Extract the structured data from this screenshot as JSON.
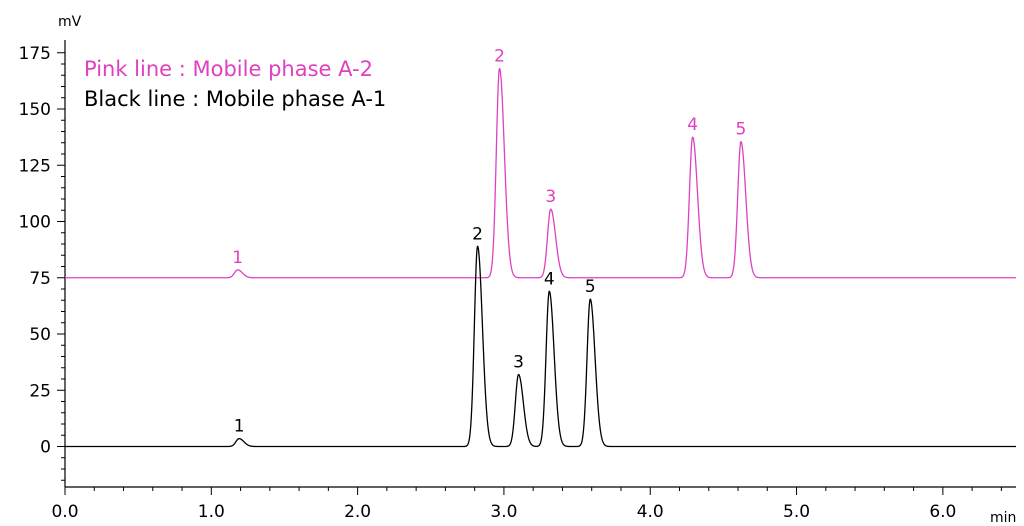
{
  "chart_data": {
    "type": "line",
    "xlabel": "min",
    "ylabel": "mV",
    "xlim": [
      0.0,
      6.5
    ],
    "ylim": [
      -18,
      178
    ],
    "x_ticks": [
      0.0,
      1.0,
      2.0,
      3.0,
      4.0,
      5.0,
      6.0
    ],
    "x_tick_labels": [
      "0.0",
      "1.0",
      "2.0",
      "3.0",
      "4.0",
      "5.0",
      "6.0"
    ],
    "y_ticks": [
      0,
      25,
      50,
      75,
      100,
      125,
      150,
      175
    ],
    "y_tick_labels": [
      "0",
      "25",
      "50",
      "75",
      "100",
      "125",
      "150",
      "175"
    ],
    "grid": false,
    "legend_position": "top-left",
    "legend": [
      "Pink line : Mobile phase A-2",
      "Black line : Mobile phase A-1"
    ],
    "series": [
      {
        "color": "#e040c0",
        "baseline": 75,
        "peaks": [
          {
            "label": "1",
            "rt": 1.18,
            "height": 78.5
          },
          {
            "label": "2",
            "rt": 2.97,
            "height": 168
          },
          {
            "label": "3",
            "rt": 3.32,
            "height": 105.5
          },
          {
            "label": "4",
            "rt": 4.29,
            "height": 137.5
          },
          {
            "label": "5",
            "rt": 4.62,
            "height": 135.5
          }
        ]
      },
      {
        "color": "#000000",
        "baseline": 0,
        "peaks": [
          {
            "label": "1",
            "rt": 1.19,
            "height": 3.5
          },
          {
            "label": "2",
            "rt": 2.82,
            "height": 89
          },
          {
            "label": "3",
            "rt": 3.1,
            "height": 32
          },
          {
            "label": "4",
            "rt": 3.31,
            "height": 69
          },
          {
            "label": "5",
            "rt": 3.59,
            "height": 65.5
          }
        ]
      }
    ]
  }
}
